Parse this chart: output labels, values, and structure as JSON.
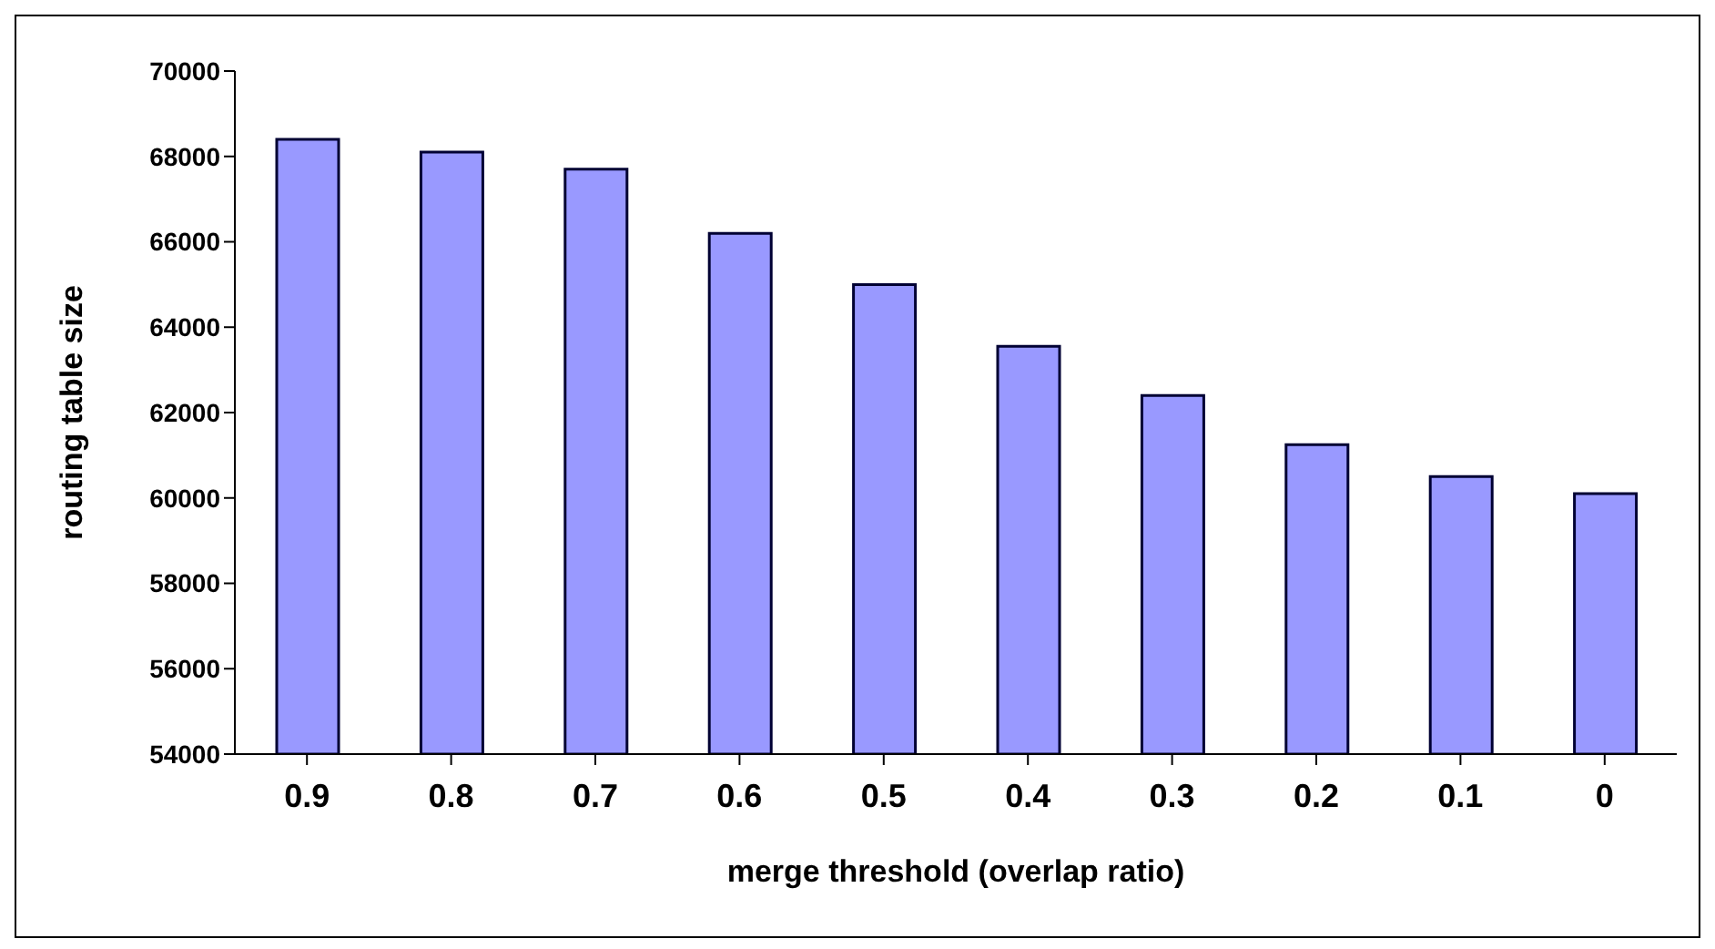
{
  "chart_data": {
    "type": "bar",
    "xlabel": "merge threshold (overlap ratio)",
    "ylabel": "routing table size",
    "categories": [
      "0.9",
      "0.8",
      "0.7",
      "0.6",
      "0.5",
      "0.4",
      "0.3",
      "0.2",
      "0.1",
      "0"
    ],
    "values": [
      68400,
      68100,
      67700,
      66200,
      65000,
      63550,
      62400,
      61250,
      60500,
      60100
    ],
    "color": "#9999ff",
    "ylim": [
      54000,
      70000
    ],
    "yticks": [
      54000,
      56000,
      58000,
      60000,
      62000,
      64000,
      66000,
      68000,
      70000
    ],
    "grid": false,
    "legend": false
  }
}
